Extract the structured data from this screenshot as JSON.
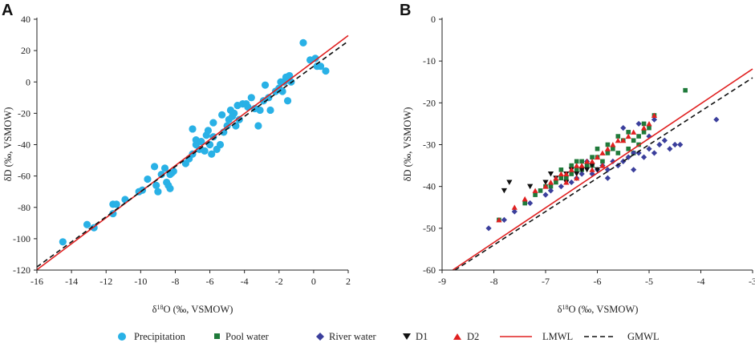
{
  "colors": {
    "precipitation": "#29b1e6",
    "pool": "#1f7a3a",
    "river": "#3b3f9c",
    "d1": "#111111",
    "d2": "#e02020",
    "lmwl": "#e02020",
    "gmwl": "#111111",
    "axis": "#222222"
  },
  "legend": [
    {
      "key": "precipitation",
      "label": "Precipitation",
      "marker": "circle"
    },
    {
      "key": "pool",
      "label": "Pool water",
      "marker": "square"
    },
    {
      "key": "river",
      "label": "River water",
      "marker": "diamond"
    },
    {
      "key": "d1",
      "label": "D1",
      "marker": "triangle-down"
    },
    {
      "key": "d2",
      "label": "D2",
      "marker": "triangle-up"
    },
    {
      "key": "lmwl",
      "label": "LMWL",
      "marker": "solid-line"
    },
    {
      "key": "gmwl",
      "label": "GMWL",
      "marker": "dashed-line"
    }
  ],
  "chart_data": [
    {
      "panel": "A",
      "type": "scatter",
      "xlabel": "δ18O (‰, VSMOW)",
      "ylabel": "δD (‰, VSMOW)",
      "xlim": [
        -16,
        2
      ],
      "ylim": [
        -120,
        40
      ],
      "xticks": [
        -16,
        -14,
        -12,
        -10,
        -8,
        -6,
        -4,
        -2,
        0,
        2
      ],
      "yticks": [
        -120,
        -100,
        -80,
        -60,
        -40,
        -20,
        0,
        20,
        40
      ],
      "lines": [
        {
          "key": "lmwl",
          "name": "LMWL",
          "slope": 8.3,
          "intercept": 13.0
        },
        {
          "key": "gmwl",
          "name": "GMWL",
          "slope": 8.0,
          "intercept": 10.0
        }
      ],
      "series": [
        {
          "key": "precipitation",
          "name": "Precipitation",
          "points": [
            [
              -14.5,
              -102
            ],
            [
              -13.1,
              -91
            ],
            [
              -12.7,
              -93
            ],
            [
              -11.6,
              -84
            ],
            [
              -11.6,
              -78
            ],
            [
              -11.4,
              -78
            ],
            [
              -10.9,
              -75
            ],
            [
              -10.1,
              -70
            ],
            [
              -9.9,
              -69
            ],
            [
              -9.6,
              -62
            ],
            [
              -9.2,
              -54
            ],
            [
              -9.1,
              -66
            ],
            [
              -9.0,
              -70
            ],
            [
              -8.8,
              -59
            ],
            [
              -8.6,
              -55
            ],
            [
              -8.5,
              -64
            ],
            [
              -8.4,
              -66
            ],
            [
              -8.3,
              -59
            ],
            [
              -8.3,
              -68
            ],
            [
              -8.2,
              -58
            ],
            [
              -8.1,
              -57
            ],
            [
              -7.4,
              -52
            ],
            [
              -7.2,
              -49
            ],
            [
              -7.0,
              -46
            ],
            [
              -7.0,
              -30
            ],
            [
              -6.8,
              -40
            ],
            [
              -6.8,
              -37
            ],
            [
              -6.6,
              -43
            ],
            [
              -6.5,
              -38
            ],
            [
              -6.3,
              -44
            ],
            [
              -6.2,
              -34
            ],
            [
              -6.1,
              -31
            ],
            [
              -6.0,
              -40
            ],
            [
              -5.9,
              -46
            ],
            [
              -5.8,
              -35
            ],
            [
              -5.8,
              -26
            ],
            [
              -5.6,
              -43
            ],
            [
              -5.4,
              -40
            ],
            [
              -5.3,
              -21
            ],
            [
              -5.2,
              -32
            ],
            [
              -5.0,
              -28
            ],
            [
              -4.9,
              -24
            ],
            [
              -4.8,
              -18
            ],
            [
              -4.7,
              -22
            ],
            [
              -4.6,
              -20
            ],
            [
              -4.5,
              -28
            ],
            [
              -4.4,
              -15
            ],
            [
              -4.3,
              -24
            ],
            [
              -4.1,
              -14
            ],
            [
              -3.9,
              -14
            ],
            [
              -3.8,
              -16
            ],
            [
              -3.6,
              -10
            ],
            [
              -3.4,
              -17
            ],
            [
              -3.2,
              -28
            ],
            [
              -3.1,
              -18
            ],
            [
              -2.9,
              -12
            ],
            [
              -2.8,
              -2
            ],
            [
              -2.6,
              -10
            ],
            [
              -2.5,
              -18
            ],
            [
              -2.2,
              -6
            ],
            [
              -2.0,
              -4
            ],
            [
              -1.9,
              0
            ],
            [
              -1.8,
              -6
            ],
            [
              -1.7,
              0
            ],
            [
              -1.6,
              3
            ],
            [
              -1.5,
              -12
            ],
            [
              -1.4,
              4
            ],
            [
              -1.3,
              0
            ],
            [
              -0.6,
              25
            ],
            [
              -0.2,
              14
            ],
            [
              0.1,
              15
            ],
            [
              0.2,
              10
            ],
            [
              0.4,
              10
            ],
            [
              0.7,
              7
            ]
          ]
        }
      ]
    },
    {
      "panel": "B",
      "type": "scatter",
      "xlabel": "δ18O (‰, VSMOW)",
      "ylabel": "δD (‰, VSMOW)",
      "xlim": [
        -9,
        -3
      ],
      "ylim": [
        -60,
        0
      ],
      "xticks": [
        -9,
        -8,
        -7,
        -6,
        -5,
        -4,
        -3
      ],
      "yticks": [
        -60,
        -50,
        -40,
        -30,
        -20,
        -10,
        0
      ],
      "lines": [
        {
          "key": "lmwl",
          "name": "LMWL",
          "slope": 8.3,
          "intercept": 13.0
        },
        {
          "key": "gmwl",
          "name": "GMWL",
          "slope": 8.0,
          "intercept": 10.0
        }
      ],
      "series": [
        {
          "key": "pool",
          "name": "Pool water",
          "points": [
            [
              -7.9,
              -48
            ],
            [
              -7.4,
              -44
            ],
            [
              -7.2,
              -42
            ],
            [
              -7.1,
              -41
            ],
            [
              -7.0,
              -40
            ],
            [
              -6.9,
              -40
            ],
            [
              -6.8,
              -39
            ],
            [
              -6.7,
              -38
            ],
            [
              -6.6,
              -38
            ],
            [
              -6.5,
              -37
            ],
            [
              -6.5,
              -35
            ],
            [
              -6.4,
              -36
            ],
            [
              -6.3,
              -36
            ],
            [
              -6.3,
              -34
            ],
            [
              -6.2,
              -35
            ],
            [
              -6.1,
              -33
            ],
            [
              -6.0,
              -33
            ],
            [
              -6.0,
              -31
            ],
            [
              -5.9,
              -34
            ],
            [
              -5.8,
              -32
            ],
            [
              -5.8,
              -30
            ],
            [
              -5.7,
              -31
            ],
            [
              -5.6,
              -32
            ],
            [
              -5.5,
              -29
            ],
            [
              -5.4,
              -31
            ],
            [
              -5.4,
              -27
            ],
            [
              -5.3,
              -29
            ],
            [
              -5.2,
              -28
            ],
            [
              -5.1,
              -27
            ],
            [
              -5.1,
              -25
            ],
            [
              -5.0,
              -26
            ],
            [
              -4.9,
              -23
            ],
            [
              -6.7,
              -36
            ],
            [
              -6.4,
              -34
            ],
            [
              -6.1,
              -35
            ],
            [
              -5.6,
              -28
            ],
            [
              -5.3,
              -32
            ],
            [
              -5.2,
              -30
            ],
            [
              -4.3,
              -17
            ]
          ]
        },
        {
          "key": "river",
          "name": "River water",
          "points": [
            [
              -8.1,
              -50
            ],
            [
              -7.8,
              -48
            ],
            [
              -7.6,
              -46
            ],
            [
              -7.3,
              -44
            ],
            [
              -7.0,
              -42
            ],
            [
              -6.9,
              -41
            ],
            [
              -6.7,
              -40
            ],
            [
              -6.5,
              -39
            ],
            [
              -6.4,
              -38
            ],
            [
              -6.3,
              -37
            ],
            [
              -6.1,
              -37
            ],
            [
              -6.0,
              -36
            ],
            [
              -5.9,
              -35
            ],
            [
              -5.8,
              -36
            ],
            [
              -5.7,
              -34
            ],
            [
              -5.6,
              -35
            ],
            [
              -5.5,
              -34
            ],
            [
              -5.4,
              -33
            ],
            [
              -5.3,
              -32
            ],
            [
              -5.2,
              -32
            ],
            [
              -5.1,
              -33
            ],
            [
              -5.0,
              -31
            ],
            [
              -4.9,
              -32
            ],
            [
              -4.8,
              -30
            ],
            [
              -4.7,
              -29
            ],
            [
              -4.6,
              -31
            ],
            [
              -4.5,
              -30
            ],
            [
              -4.4,
              -30
            ],
            [
              -5.5,
              -26
            ],
            [
              -5.2,
              -25
            ],
            [
              -5.0,
              -28
            ],
            [
              -4.9,
              -24
            ],
            [
              -3.7,
              -24
            ],
            [
              -6.2,
              -34
            ],
            [
              -5.8,
              -38
            ],
            [
              -5.3,
              -36
            ]
          ]
        },
        {
          "key": "d1",
          "name": "D1",
          "points": [
            [
              -7.8,
              -41
            ],
            [
              -7.7,
              -39
            ],
            [
              -7.3,
              -40
            ],
            [
              -7.0,
              -39
            ],
            [
              -6.8,
              -38
            ],
            [
              -6.6,
              -37
            ],
            [
              -6.5,
              -36
            ],
            [
              -6.4,
              -37
            ],
            [
              -6.3,
              -36
            ],
            [
              -6.2,
              -36
            ],
            [
              -6.1,
              -35
            ],
            [
              -6.9,
              -37
            ],
            [
              -6.6,
              -39
            ],
            [
              -6.0,
              -36
            ]
          ]
        },
        {
          "key": "d2",
          "name": "D2",
          "points": [
            [
              -7.9,
              -48
            ],
            [
              -7.6,
              -45
            ],
            [
              -7.4,
              -43
            ],
            [
              -7.2,
              -41
            ],
            [
              -7.0,
              -40
            ],
            [
              -6.9,
              -39
            ],
            [
              -6.8,
              -38
            ],
            [
              -6.7,
              -37
            ],
            [
              -6.6,
              -37
            ],
            [
              -6.5,
              -36
            ],
            [
              -6.4,
              -35
            ],
            [
              -6.3,
              -35
            ],
            [
              -6.2,
              -34
            ],
            [
              -6.1,
              -34
            ],
            [
              -6.0,
              -33
            ],
            [
              -5.9,
              -32
            ],
            [
              -5.8,
              -31
            ],
            [
              -5.7,
              -30
            ],
            [
              -5.6,
              -29
            ],
            [
              -5.5,
              -29
            ],
            [
              -5.4,
              -28
            ],
            [
              -5.3,
              -27
            ],
            [
              -5.1,
              -26
            ],
            [
              -5.0,
              -25
            ],
            [
              -4.9,
              -23
            ],
            [
              -6.6,
              -39
            ],
            [
              -6.4,
              -38
            ],
            [
              -6.1,
              -36
            ],
            [
              -5.9,
              -35
            ]
          ]
        }
      ]
    }
  ]
}
